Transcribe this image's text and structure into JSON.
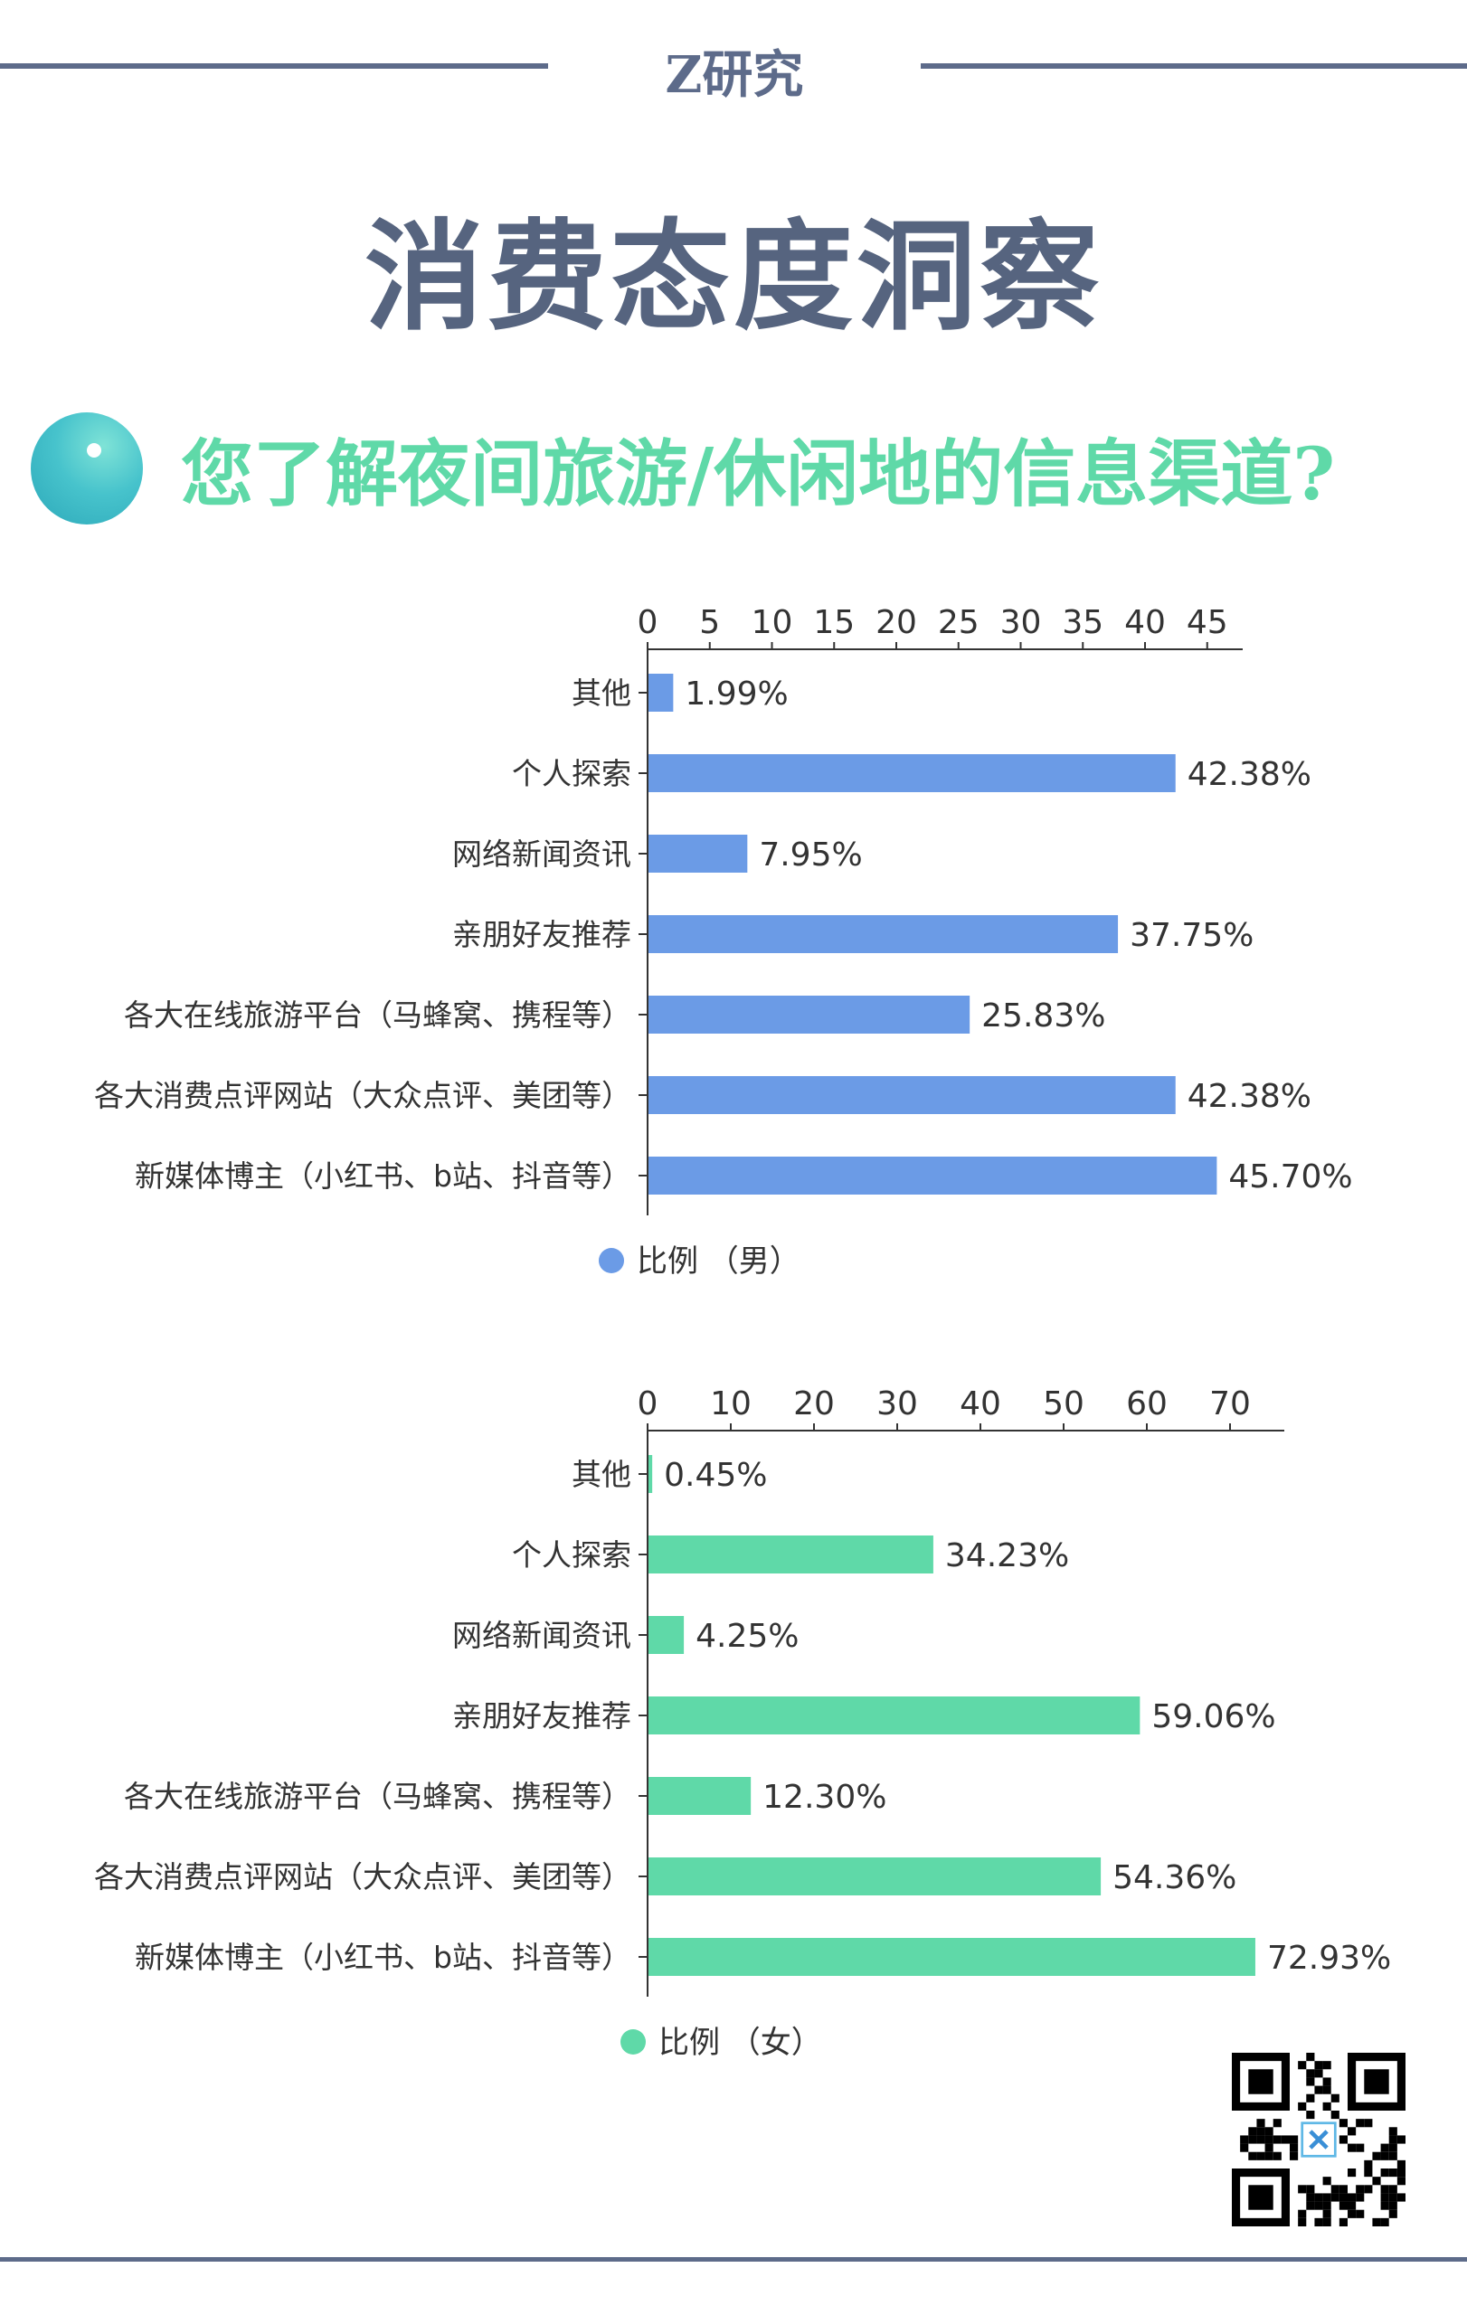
{
  "header": {
    "brand": "Z研究",
    "title": "消费态度洞察",
    "question": "您了解夜间旅游/休闲地的信息渠道?"
  },
  "colors": {
    "rule": "#5d6b8a",
    "male_bar": "#6b9be6",
    "female_bar": "#5fd9a8",
    "question_text": "#5fd9a8"
  },
  "chart_data": [
    {
      "type": "bar",
      "orientation": "horizontal",
      "categories": [
        "其他",
        "个人探索",
        "网络新闻资讯",
        "亲朋好友推荐",
        "各大在线旅游平台（马蜂窝、携程等）",
        "各大消费点评网站（大众点评、美团等）",
        "新媒体博主（小红书、b站、抖音等）"
      ],
      "series": [
        {
          "name": "比例（男）",
          "values": [
            1.99,
            42.38,
            7.95,
            37.75,
            25.83,
            42.38,
            45.7
          ]
        }
      ],
      "data_labels": [
        "1.99%",
        "42.38%",
        "7.95%",
        "37.75%",
        "25.83%",
        "42.38%",
        "45.70%"
      ],
      "xlim": [
        0,
        45
      ],
      "ticks": [
        0,
        5,
        10,
        15,
        20,
        25,
        30,
        35,
        40,
        45
      ],
      "axis_position": "top",
      "legend": "bottom",
      "legend_label": "比例 （男）",
      "color": "#6b9be6"
    },
    {
      "type": "bar",
      "orientation": "horizontal",
      "categories": [
        "其他",
        "个人探索",
        "网络新闻资讯",
        "亲朋好友推荐",
        "各大在线旅游平台（马蜂窝、携程等）",
        "各大消费点评网站（大众点评、美团等）",
        "新媒体博主（小红书、b站、抖音等）"
      ],
      "series": [
        {
          "name": "比例（女）",
          "values": [
            0.45,
            34.23,
            4.25,
            59.06,
            12.3,
            54.36,
            72.93
          ]
        }
      ],
      "data_labels": [
        "0.45%",
        "34.23%",
        "4.25%",
        "59.06%",
        "12.30%",
        "54.36%",
        "72.93%"
      ],
      "xlim": [
        0,
        70
      ],
      "ticks": [
        0,
        10,
        20,
        30,
        40,
        50,
        60,
        70
      ],
      "axis_position": "top",
      "legend": "bottom",
      "legend_label": "比例 （女）",
      "color": "#5fd9a8"
    }
  ]
}
